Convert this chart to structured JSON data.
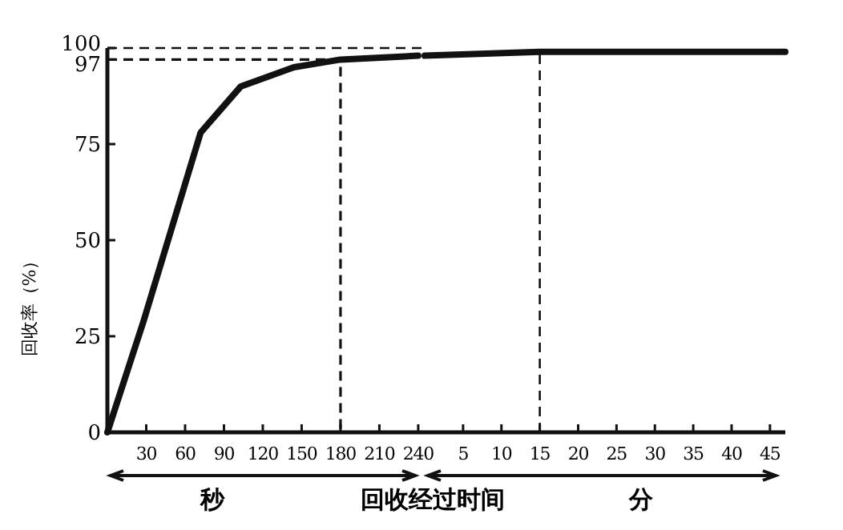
{
  "chart_data": [
    {
      "type": "line",
      "ylabel": "回收率（%）",
      "xlabel": "秒",
      "annotations": [
        "回收经过时间"
      ],
      "xlim": [
        0,
        245
      ],
      "ylim": [
        0,
        100
      ],
      "xticks": [
        30,
        60,
        90,
        120,
        150,
        180,
        210,
        240
      ],
      "yticks": [
        0,
        25,
        50,
        75,
        97,
        100
      ],
      "series": [
        {
          "color": "#111111",
          "line_style": "solid",
          "x": [
            0,
            28,
            72,
            103,
            144,
            180,
            240
          ],
          "values": [
            0,
            29,
            78,
            90,
            95,
            97,
            98
          ]
        },
        {
          "type": "line",
          "color": "#111111",
          "line_style": "dashed",
          "x": [
            0,
            180,
            180
          ],
          "values": [
            97,
            97,
            0
          ]
        }
      ],
      "ref_lines": [
        {
          "axis": "y",
          "value": 100,
          "line_style": "dashed",
          "color": "#111111"
        }
      ]
    },
    {
      "type": "line",
      "xlabel": "分",
      "xlim": [
        0,
        47
      ],
      "ylim": [
        0,
        100
      ],
      "xticks": [
        5,
        10,
        15,
        20,
        25,
        30,
        35,
        40,
        45
      ],
      "tick_labels": "x",
      "series": [
        {
          "color": "#111111",
          "line_style": "solid",
          "x": [
            0,
            15,
            47
          ],
          "values": [
            98,
            99,
            99
          ]
        }
      ],
      "ref_lines": [
        {
          "axis": "x",
          "value": 15,
          "line_style": "dashed",
          "color": "#111111"
        }
      ]
    }
  ]
}
